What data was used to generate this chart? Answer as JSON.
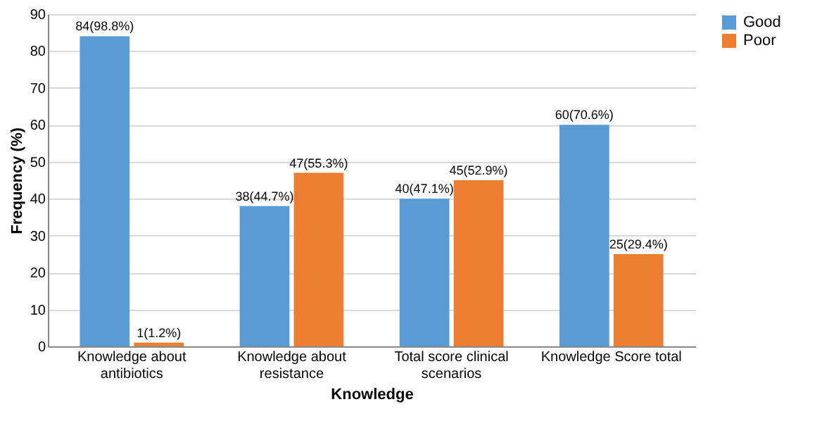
{
  "chart_data": {
    "type": "bar",
    "xlabel": "Knowledge",
    "ylabel": "Frequency (%)",
    "categories": [
      "Knowledge about antibiotics",
      "Knowledge about resistance",
      "Total score clinical scenarios",
      "Knowledge Score total"
    ],
    "series": [
      {
        "name": "Good",
        "color": "#5b9bd5",
        "values": [
          84,
          38,
          40,
          60
        ],
        "value_labels": [
          "84(98.8%)",
          "38(44.7%)",
          "40(47.1%)",
          "60(70.6%)"
        ]
      },
      {
        "name": "Poor",
        "color": "#ed7d31",
        "values": [
          1,
          47,
          45,
          25
        ],
        "value_labels": [
          "1(1.2%)",
          "47(55.3%)",
          "45(52.9%)",
          "25(29.4%)"
        ]
      }
    ],
    "ylim": [
      0,
      90
    ],
    "yticks": [
      0,
      10,
      20,
      30,
      40,
      50,
      60,
      70,
      80,
      90
    ],
    "grid": "y",
    "legend": "right"
  }
}
